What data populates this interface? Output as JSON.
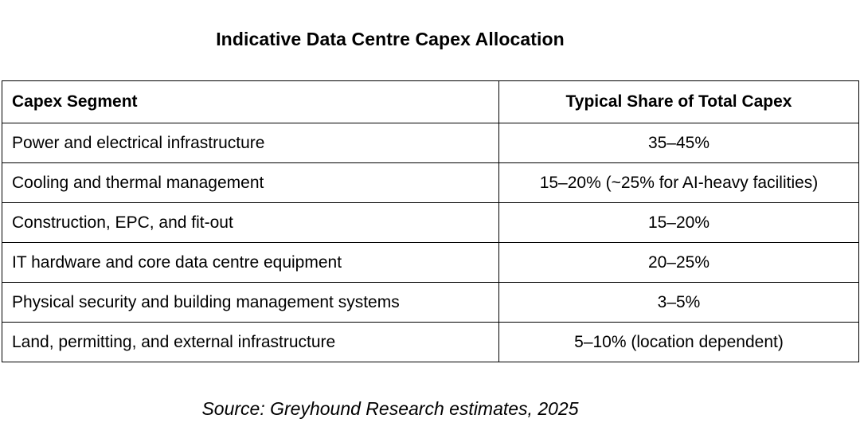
{
  "title": "Indicative Data Centre Capex Allocation",
  "table": {
    "headers": [
      "Capex Segment",
      "Typical Share of Total Capex"
    ],
    "rows": [
      [
        "Power and electrical infrastructure",
        "35–45%"
      ],
      [
        "Cooling and thermal management",
        "15–20% (~25% for AI-heavy facilities)"
      ],
      [
        "Construction, EPC, and fit-out",
        "15–20%"
      ],
      [
        "IT hardware and core data centre equipment",
        "20–25%"
      ],
      [
        "Physical security and building management systems",
        "3–5%"
      ],
      [
        "Land, permitting, and external infrastructure",
        "5–10% (location dependent)"
      ]
    ]
  },
  "source": "Source: Greyhound Research estimates, 2025"
}
